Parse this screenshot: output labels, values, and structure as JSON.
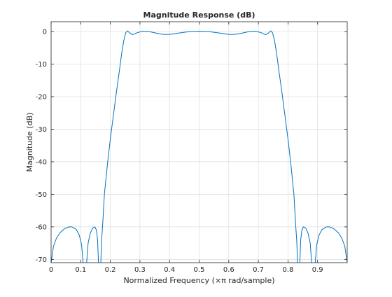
{
  "chart_data": {
    "type": "line",
    "title": "Magnitude Response (dB)",
    "xlabel": "Normalized Frequency  (×π rad/sample)",
    "ylabel": "Magnitude (dB)",
    "xlim": [
      0,
      1
    ],
    "ylim": [
      -71,
      3
    ],
    "grid": true,
    "xticks": [
      0,
      0.1,
      0.2,
      0.3,
      0.4,
      0.5,
      0.6,
      0.7,
      0.8,
      0.9
    ],
    "xtick_labels": [
      "0",
      "0.1",
      "0.2",
      "0.3",
      "0.4",
      "0.5",
      "0.6",
      "0.7",
      "0.8",
      "0.9"
    ],
    "yticks": [
      0,
      -10,
      -20,
      -30,
      -40,
      -50,
      -60,
      -70
    ],
    "ytick_labels": [
      "0",
      "-10",
      "-20",
      "-30",
      "-40",
      "-50",
      "-60",
      "-70"
    ],
    "line_color": "#0072bd",
    "series": [
      {
        "segments": [
          [
            [
              0.0,
              -71
            ],
            [
              0.008,
              -66
            ],
            [
              0.018,
              -63.5
            ],
            [
              0.03,
              -61.8
            ],
            [
              0.045,
              -60.6
            ],
            [
              0.06,
              -60.0
            ],
            [
              0.07,
              -60.0
            ],
            [
              0.085,
              -60.8
            ],
            [
              0.095,
              -62.5
            ],
            [
              0.103,
              -65.5
            ],
            [
              0.108,
              -71
            ]
          ],
          [
            [
              0.12,
              -71
            ],
            [
              0.125,
              -65
            ],
            [
              0.132,
              -62
            ],
            [
              0.14,
              -60.4
            ],
            [
              0.148,
              -60.0
            ],
            [
              0.153,
              -61
            ],
            [
              0.157,
              -64
            ],
            [
              0.16,
              -71
            ]
          ],
          [
            [
              0.168,
              -71
            ],
            [
              0.17,
              -65
            ],
            [
              0.175,
              -58
            ],
            [
              0.18,
              -50
            ],
            [
              0.19,
              -41
            ],
            [
              0.2,
              -33
            ],
            [
              0.21,
              -26
            ],
            [
              0.22,
              -19
            ],
            [
              0.23,
              -12.5
            ],
            [
              0.238,
              -7
            ],
            [
              0.245,
              -3
            ],
            [
              0.252,
              -0.4
            ],
            [
              0.258,
              0.2
            ],
            [
              0.265,
              -0.4
            ],
            [
              0.275,
              -1.0
            ],
            [
              0.29,
              -0.4
            ],
            [
              0.31,
              0.1
            ],
            [
              0.33,
              0.0
            ],
            [
              0.36,
              -0.6
            ],
            [
              0.38,
              -0.9
            ],
            [
              0.4,
              -0.9
            ],
            [
              0.43,
              -0.5
            ],
            [
              0.47,
              0.0
            ],
            [
              0.5,
              0.1
            ],
            [
              0.53,
              0.0
            ],
            [
              0.57,
              -0.5
            ],
            [
              0.6,
              -0.9
            ],
            [
              0.62,
              -0.9
            ],
            [
              0.64,
              -0.6
            ],
            [
              0.67,
              0.0
            ],
            [
              0.69,
              0.1
            ],
            [
              0.71,
              -0.4
            ],
            [
              0.725,
              -1.0
            ],
            [
              0.735,
              -0.4
            ],
            [
              0.742,
              0.2
            ],
            [
              0.748,
              -0.4
            ],
            [
              0.755,
              -3
            ],
            [
              0.762,
              -7
            ],
            [
              0.77,
              -12.5
            ],
            [
              0.78,
              -19
            ],
            [
              0.79,
              -26
            ],
            [
              0.8,
              -33
            ],
            [
              0.81,
              -41
            ],
            [
              0.82,
              -50
            ],
            [
              0.825,
              -58
            ],
            [
              0.83,
              -65
            ],
            [
              0.832,
              -71
            ]
          ],
          [
            [
              0.84,
              -71
            ],
            [
              0.843,
              -64
            ],
            [
              0.847,
              -61
            ],
            [
              0.852,
              -60.0
            ],
            [
              0.86,
              -60.4
            ],
            [
              0.868,
              -62
            ],
            [
              0.875,
              -65
            ],
            [
              0.88,
              -71
            ]
          ],
          [
            [
              0.892,
              -71
            ],
            [
              0.897,
              -65.5
            ],
            [
              0.905,
              -62.5
            ],
            [
              0.915,
              -60.8
            ],
            [
              0.93,
              -60.0
            ],
            [
              0.94,
              -60.0
            ],
            [
              0.955,
              -60.6
            ],
            [
              0.97,
              -61.8
            ],
            [
              0.982,
              -63.5
            ],
            [
              0.992,
              -66
            ],
            [
              1.0,
              -71
            ]
          ]
        ]
      }
    ]
  }
}
